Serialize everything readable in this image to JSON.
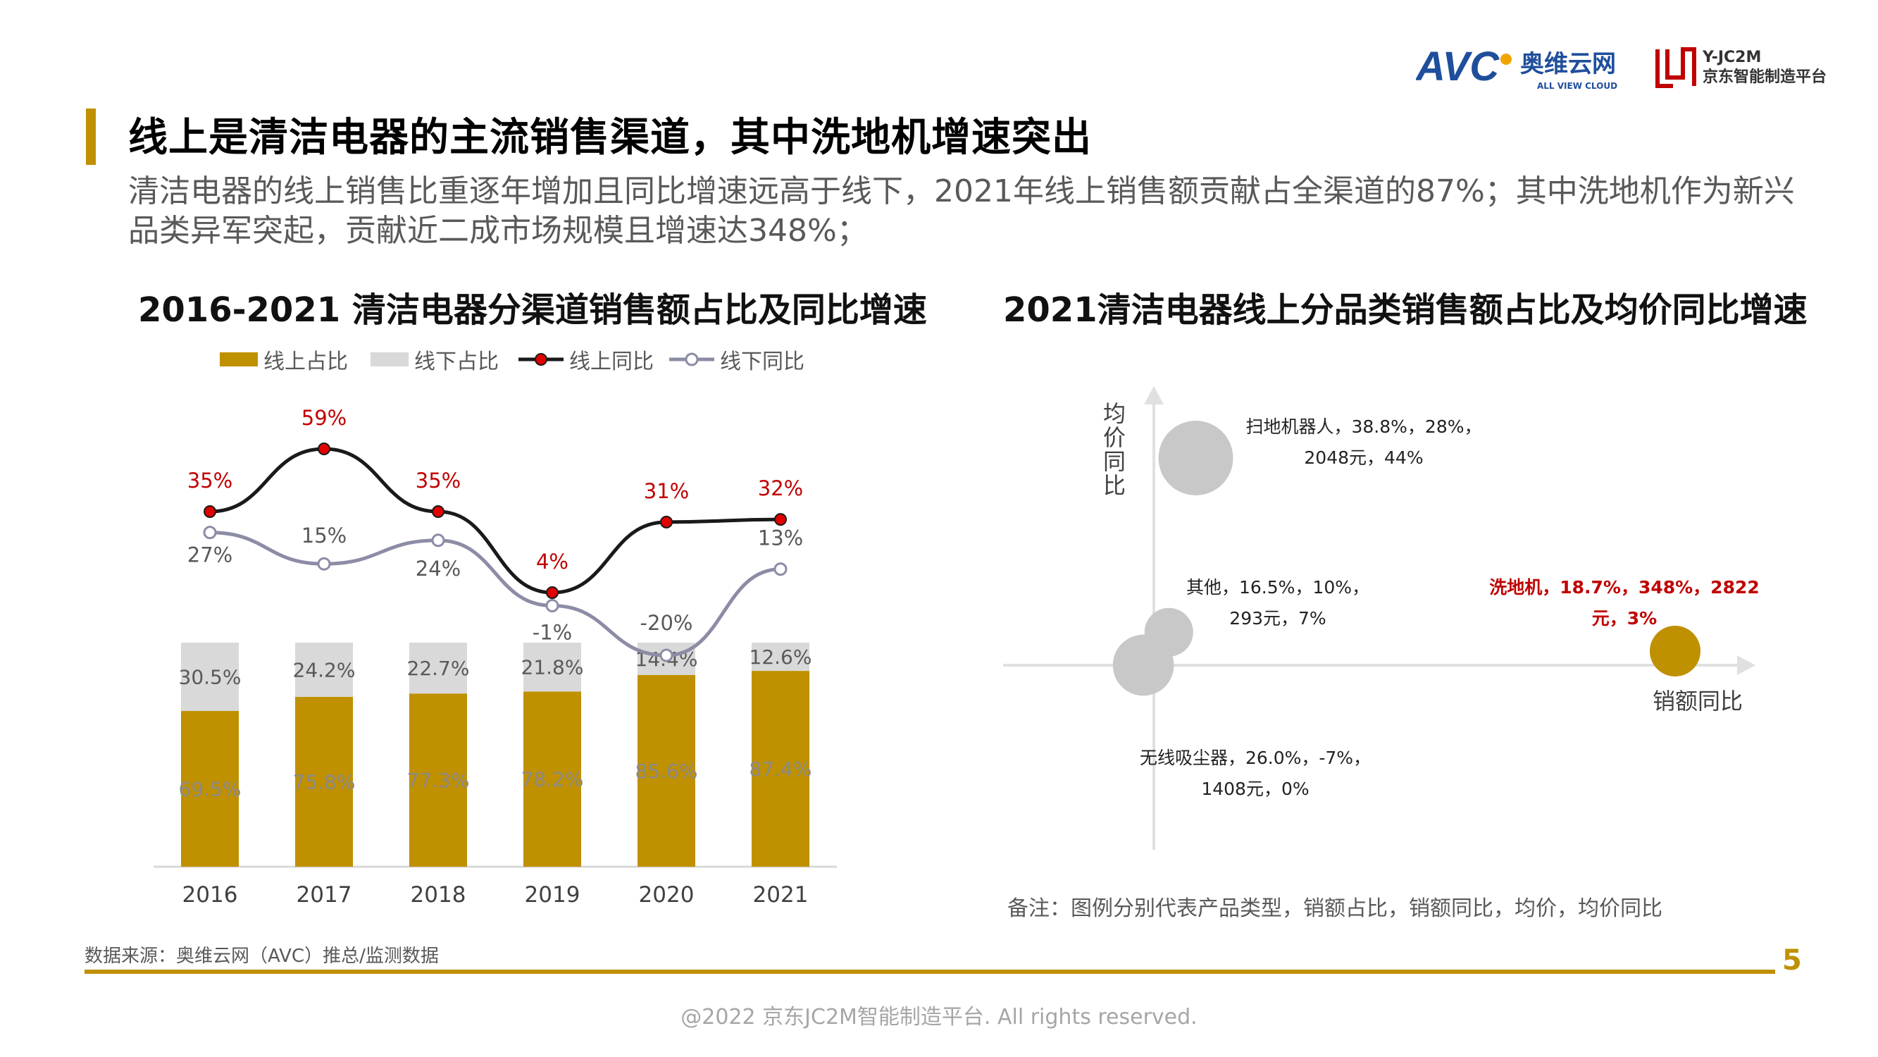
{
  "header": {
    "avc_logo_text": "AVC",
    "avc_cn": "奥维云网",
    "avc_en": "ALL VIEW CLOUD",
    "jc2m_name": "Y-JC2M",
    "jc2m_cn": "京东智能制造平台"
  },
  "title": "线上是清洁电器的主流销售渠道，其中洗地机增速突出",
  "subtitle": "清洁电器的线上销售比重逐年增加且同比增速远高于线下，2021年线上销售额贡献占全渠道的87%；其中洗地机作为新兴品类异军突起，贡献近二成市场规模且增速达348%；",
  "colors": {
    "gold": "#bf9000",
    "light_gray": "#d9d9d9",
    "online_line": "#1a1a1a",
    "offline_line": "#8c8ca6",
    "red_label": "#c00000",
    "bubble_gray": "#c8c8c8"
  },
  "chart_data": [
    {
      "type": "bar",
      "title": "2016-2021 清洁电器分渠道销售额占比及同比增速",
      "categories": [
        "2016",
        "2017",
        "2018",
        "2019",
        "2020",
        "2021"
      ],
      "stacked": true,
      "legend_position": "top",
      "series": [
        {
          "name": "线上占比",
          "kind": "bar",
          "values": [
            69.5,
            75.8,
            77.3,
            78.2,
            85.6,
            87.4
          ],
          "labels": [
            "69.5%",
            "75.8%",
            "77.3%",
            "78.2%",
            "85.6%",
            "87.4%"
          ]
        },
        {
          "name": "线下占比",
          "kind": "bar",
          "values": [
            30.5,
            24.2,
            22.7,
            21.8,
            14.4,
            12.6
          ],
          "labels": [
            "30.5%",
            "24.2%",
            "22.7%",
            "21.8%",
            "14.4%",
            "12.6%"
          ]
        },
        {
          "name": "线上同比",
          "kind": "line",
          "values": [
            35,
            59,
            35,
            4,
            31,
            32
          ],
          "labels": [
            "35%",
            "59%",
            "35%",
            "4%",
            "31%",
            "32%"
          ]
        },
        {
          "name": "线下同比",
          "kind": "line",
          "values": [
            27,
            15,
            24,
            -1,
            -20,
            13
          ],
          "labels": [
            "27%",
            "15%",
            "24%",
            "-1%",
            "-20%",
            "13%"
          ]
        }
      ],
      "y_bar_range": [
        0,
        100
      ],
      "y_line_range": [
        -20,
        59
      ]
    },
    {
      "type": "scatter",
      "title": "2021清洁电器线上分品类销售额占比及均价同比增速",
      "xlabel": "销额同比",
      "ylabel": "均价同比",
      "points": [
        {
          "name": "扫地机器人",
          "share": 38.8,
          "x": 28,
          "price": 2048,
          "y": 44,
          "label_line1": "扫地机器人，38.8%，28%，",
          "label_line2": "2048元，44%",
          "highlight": false
        },
        {
          "name": "其他",
          "share": 16.5,
          "x": 10,
          "price": 293,
          "y": 7,
          "label_line1": "其他，16.5%，10%，",
          "label_line2": "293元，7%",
          "highlight": false
        },
        {
          "name": "洗地机",
          "share": 18.7,
          "x": 348,
          "price": 2822,
          "y": 3,
          "label_line1": "洗地机，18.7%，348%，2822",
          "label_line2": "元，3%",
          "highlight": true
        },
        {
          "name": "无线吸尘器",
          "share": 26.0,
          "x": -7,
          "price": 1408,
          "y": 0,
          "label_line1": "无线吸尘器，26.0%，-7%，",
          "label_line2": "1408元，0%",
          "highlight": false
        }
      ],
      "note": "备注：图例分别代表产品类型，销额占比，销额同比，均价，均价同比"
    }
  ],
  "footer": {
    "source": "数据来源：奥维云网（AVC）推总/监测数据",
    "page_number": "5",
    "copyright": "@2022 京东JC2M智能制造平台. All rights reserved."
  }
}
